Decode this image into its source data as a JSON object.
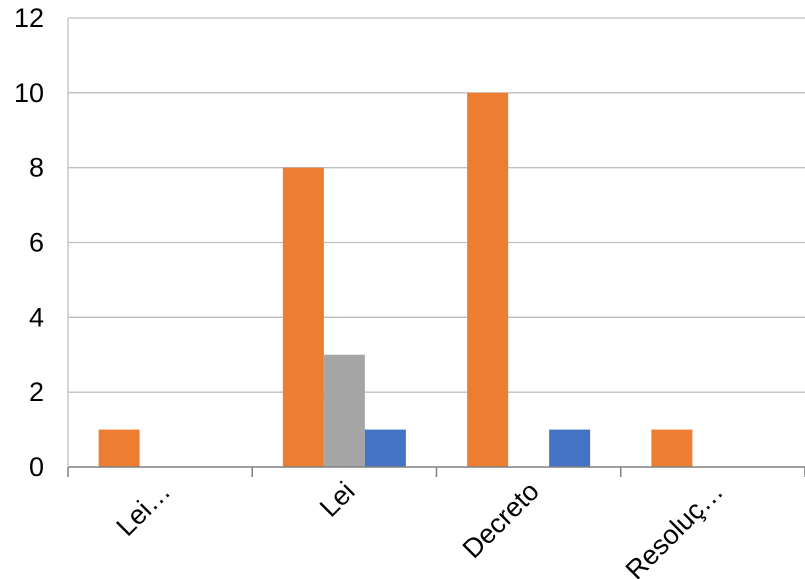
{
  "chart_data": {
    "type": "bar",
    "categories": [
      "Lei…",
      "Lei",
      "Decreto",
      "Resoluç…"
    ],
    "series": [
      {
        "values": [
          1,
          8,
          10,
          1
        ],
        "color": "#ED7D31"
      },
      {
        "values": [
          0,
          3,
          0,
          0
        ],
        "color": "#A5A5A5"
      },
      {
        "values": [
          0,
          1,
          1,
          0
        ],
        "color": "#4472C4"
      }
    ],
    "ylim": [
      0,
      12
    ],
    "yticks": [
      0,
      2,
      4,
      6,
      8,
      10,
      12
    ],
    "grid": true,
    "gridline_color": "#BFBFBF",
    "axis_color": "#808080",
    "legend": "none"
  }
}
